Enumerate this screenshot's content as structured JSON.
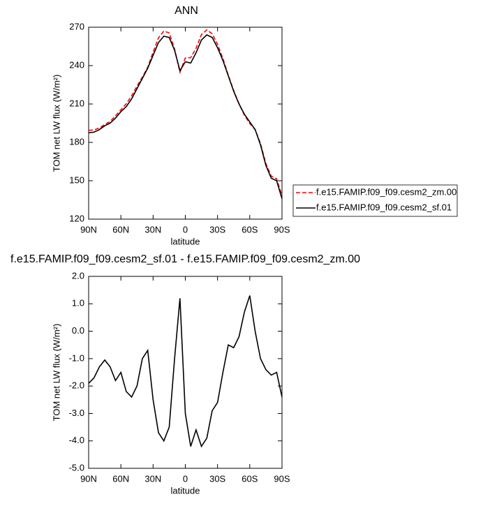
{
  "chart_data": [
    {
      "type": "line",
      "title": "ANN",
      "xlabel": "latitude",
      "ylabel": "TOM net LW flux (W/m²)",
      "x": [
        90,
        85,
        80,
        75,
        70,
        65,
        60,
        55,
        50,
        45,
        40,
        35,
        30,
        25,
        20,
        15,
        10,
        5,
        0,
        -5,
        -10,
        -15,
        -20,
        -25,
        -30,
        -35,
        -40,
        -45,
        -50,
        -55,
        -60,
        -65,
        -70,
        -75,
        -80,
        -85,
        -90
      ],
      "xlim": [
        90,
        -90
      ],
      "xticks": [
        {
          "value": 90,
          "label": "90N"
        },
        {
          "value": 60,
          "label": "60N"
        },
        {
          "value": 30,
          "label": "30N"
        },
        0,
        {
          "value": -30,
          "label": "30S"
        },
        {
          "value": -60,
          "label": "60S"
        },
        {
          "value": -90,
          "label": "90S"
        }
      ],
      "ylim": [
        120,
        270
      ],
      "yticks": [
        120,
        150,
        180,
        210,
        240,
        270
      ],
      "legend": "right",
      "series": [
        {
          "name": "f.e15.FAMIP.f09_f09.cesm2_zm.00",
          "color": "#ff0000",
          "dash": true,
          "values": [
            189.4,
            189.7,
            191.3,
            194.05,
            196.3,
            200.8,
            205.5,
            210.2,
            216.4,
            224,
            231,
            238.7,
            250.5,
            261.7,
            267,
            265.5,
            253,
            234.8,
            246,
            246.2,
            253.6,
            264.2,
            267.9,
            264.9,
            256.6,
            245.5,
            232.5,
            220.6,
            210.2,
            201.3,
            194.7,
            190,
            179,
            163.4,
            153.6,
            151.5,
            138.4
          ]
        },
        {
          "name": "f.e15.FAMIP.f09_f09.cesm2_sf.01",
          "color": "#000000",
          "dash": false,
          "values": [
            187.5,
            188,
            190,
            193,
            195,
            199,
            204,
            208,
            214,
            222,
            230,
            238,
            248,
            258,
            263,
            262,
            252,
            236,
            243,
            242,
            250,
            260,
            264,
            262,
            254,
            244,
            232,
            220,
            210,
            202,
            196,
            190,
            178,
            162,
            152,
            150,
            136
          ]
        }
      ]
    },
    {
      "type": "line",
      "title": "f.e15.FAMIP.f09_f09.cesm2_sf.01 - f.e15.FAMIP.f09_f09.cesm2_zm.00",
      "xlabel": "latitude",
      "ylabel": "TOM net LW flux (W/m²)",
      "x": [
        90,
        85,
        80,
        75,
        70,
        65,
        60,
        55,
        50,
        45,
        40,
        35,
        30,
        25,
        20,
        15,
        10,
        5,
        0,
        -5,
        -10,
        -15,
        -20,
        -25,
        -30,
        -35,
        -40,
        -45,
        -50,
        -55,
        -60,
        -65,
        -70,
        -75,
        -80,
        -85,
        -90
      ],
      "xlim": [
        90,
        -90
      ],
      "xticks": [
        {
          "value": 90,
          "label": "90N"
        },
        {
          "value": 60,
          "label": "60N"
        },
        {
          "value": 30,
          "label": "30N"
        },
        0,
        {
          "value": -30,
          "label": "30S"
        },
        {
          "value": -60,
          "label": "60S"
        },
        {
          "value": -90,
          "label": "90S"
        }
      ],
      "ylim": [
        -5,
        2
      ],
      "yticks": [
        {
          "value": -5,
          "label": "-5.0"
        },
        {
          "value": -4,
          "label": "-4.0"
        },
        {
          "value": -3,
          "label": "-3.0"
        },
        {
          "value": -2,
          "label": "-2.0"
        },
        {
          "value": -1,
          "label": "-1.0"
        },
        {
          "value": 0,
          "label": "0.0"
        },
        {
          "value": 1,
          "label": "1.0"
        },
        {
          "value": 2,
          "label": "2.0"
        }
      ],
      "series": [
        {
          "color": "#000000",
          "dash": false,
          "values": [
            -1.9,
            -1.7,
            -1.3,
            -1.05,
            -1.3,
            -1.8,
            -1.5,
            -2.2,
            -2.4,
            -2.0,
            -1.0,
            -0.7,
            -2.5,
            -3.7,
            -4.0,
            -3.5,
            -1.0,
            1.2,
            -3.0,
            -4.2,
            -3.6,
            -4.2,
            -3.9,
            -2.9,
            -2.6,
            -1.5,
            -0.5,
            -0.6,
            -0.2,
            0.7,
            1.3,
            0.0,
            -1.0,
            -1.4,
            -1.6,
            -1.5,
            -2.4
          ]
        }
      ]
    }
  ]
}
